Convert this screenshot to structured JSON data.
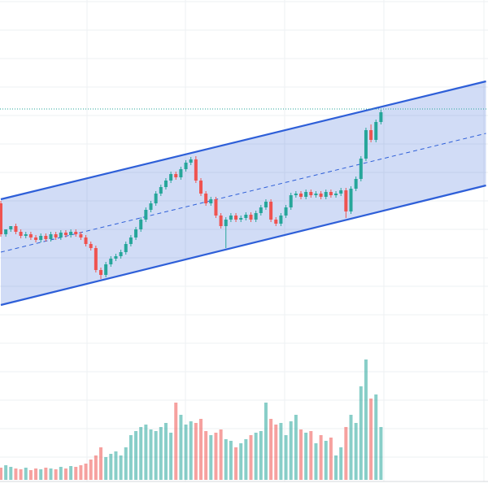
{
  "chart_data": {
    "type": "candlestick",
    "ylim": [
      0,
      600
    ],
    "volume_ylim": [
      0,
      200
    ],
    "up_color": "#26a69a",
    "down_color": "#ef5350",
    "channel_color": "#2e5fd8",
    "last_price_line": 466,
    "channel": {
      "x": [
        0,
        97
      ],
      "upper": [
        355,
        500
      ],
      "lower": [
        225,
        372
      ]
    },
    "open": [
      350,
      312,
      318,
      322,
      315,
      310,
      312,
      308,
      305,
      310,
      306,
      312,
      308,
      314,
      311,
      315,
      312,
      308,
      300,
      295,
      268,
      262,
      275,
      282,
      285,
      290,
      300,
      308,
      318,
      330,
      342,
      350,
      362,
      370,
      378,
      386,
      382,
      392,
      400,
      404,
      378,
      362,
      350,
      355,
      335,
      322,
      330,
      335,
      330,
      332,
      336,
      330,
      338,
      345,
      352,
      330,
      325,
      335,
      345,
      360,
      362,
      358,
      364,
      360,
      362,
      358,
      364,
      360,
      362,
      366,
      340,
      368,
      380,
      405,
      440,
      428,
      450
    ],
    "high": [
      353,
      315,
      321,
      325,
      318,
      315,
      315,
      311,
      313,
      313,
      315,
      315,
      317,
      317,
      318,
      318,
      315,
      311,
      303,
      298,
      271,
      278,
      285,
      288,
      293,
      303,
      311,
      321,
      333,
      345,
      353,
      365,
      373,
      381,
      389,
      389,
      395,
      403,
      407,
      408,
      381,
      365,
      358,
      358,
      338,
      333,
      338,
      338,
      335,
      339,
      339,
      341,
      348,
      355,
      355,
      333,
      338,
      348,
      363,
      365,
      365,
      367,
      367,
      365,
      365,
      367,
      367,
      365,
      369,
      369,
      371,
      383,
      408,
      443,
      447,
      453,
      465
    ],
    "low": [
      309,
      309,
      315,
      312,
      307,
      307,
      305,
      302,
      302,
      303,
      303,
      305,
      305,
      308,
      308,
      309,
      305,
      297,
      292,
      265,
      257,
      259,
      272,
      279,
      282,
      287,
      297,
      305,
      315,
      327,
      339,
      347,
      359,
      367,
      375,
      379,
      379,
      389,
      397,
      375,
      359,
      347,
      347,
      332,
      319,
      295,
      327,
      327,
      327,
      329,
      327,
      327,
      335,
      342,
      327,
      322,
      322,
      332,
      342,
      357,
      355,
      355,
      357,
      357,
      355,
      355,
      357,
      357,
      359,
      332,
      337,
      365,
      377,
      402,
      425,
      425,
      447
    ],
    "close": [
      312,
      318,
      322,
      315,
      310,
      312,
      308,
      305,
      310,
      306,
      312,
      308,
      314,
      311,
      315,
      312,
      308,
      300,
      295,
      268,
      262,
      275,
      282,
      285,
      290,
      300,
      308,
      318,
      330,
      342,
      350,
      362,
      370,
      378,
      386,
      382,
      392,
      400,
      404,
      378,
      362,
      350,
      355,
      335,
      322,
      330,
      335,
      330,
      332,
      336,
      330,
      338,
      345,
      352,
      330,
      325,
      335,
      345,
      360,
      362,
      358,
      364,
      360,
      362,
      358,
      364,
      360,
      362,
      366,
      340,
      368,
      380,
      405,
      440,
      428,
      450,
      462
    ],
    "volume": [
      15,
      18,
      16,
      14,
      13,
      15,
      12,
      14,
      13,
      15,
      14,
      13,
      16,
      14,
      17,
      16,
      18,
      20,
      25,
      30,
      40,
      28,
      32,
      35,
      30,
      40,
      55,
      60,
      65,
      68,
      62,
      60,
      65,
      70,
      58,
      95,
      80,
      68,
      72,
      70,
      75,
      60,
      55,
      58,
      62,
      50,
      48,
      40,
      45,
      50,
      55,
      58,
      60,
      95,
      75,
      68,
      70,
      55,
      72,
      80,
      62,
      58,
      60,
      45,
      55,
      48,
      52,
      30,
      40,
      65,
      80,
      70,
      115,
      148,
      100,
      105,
      65
    ]
  }
}
